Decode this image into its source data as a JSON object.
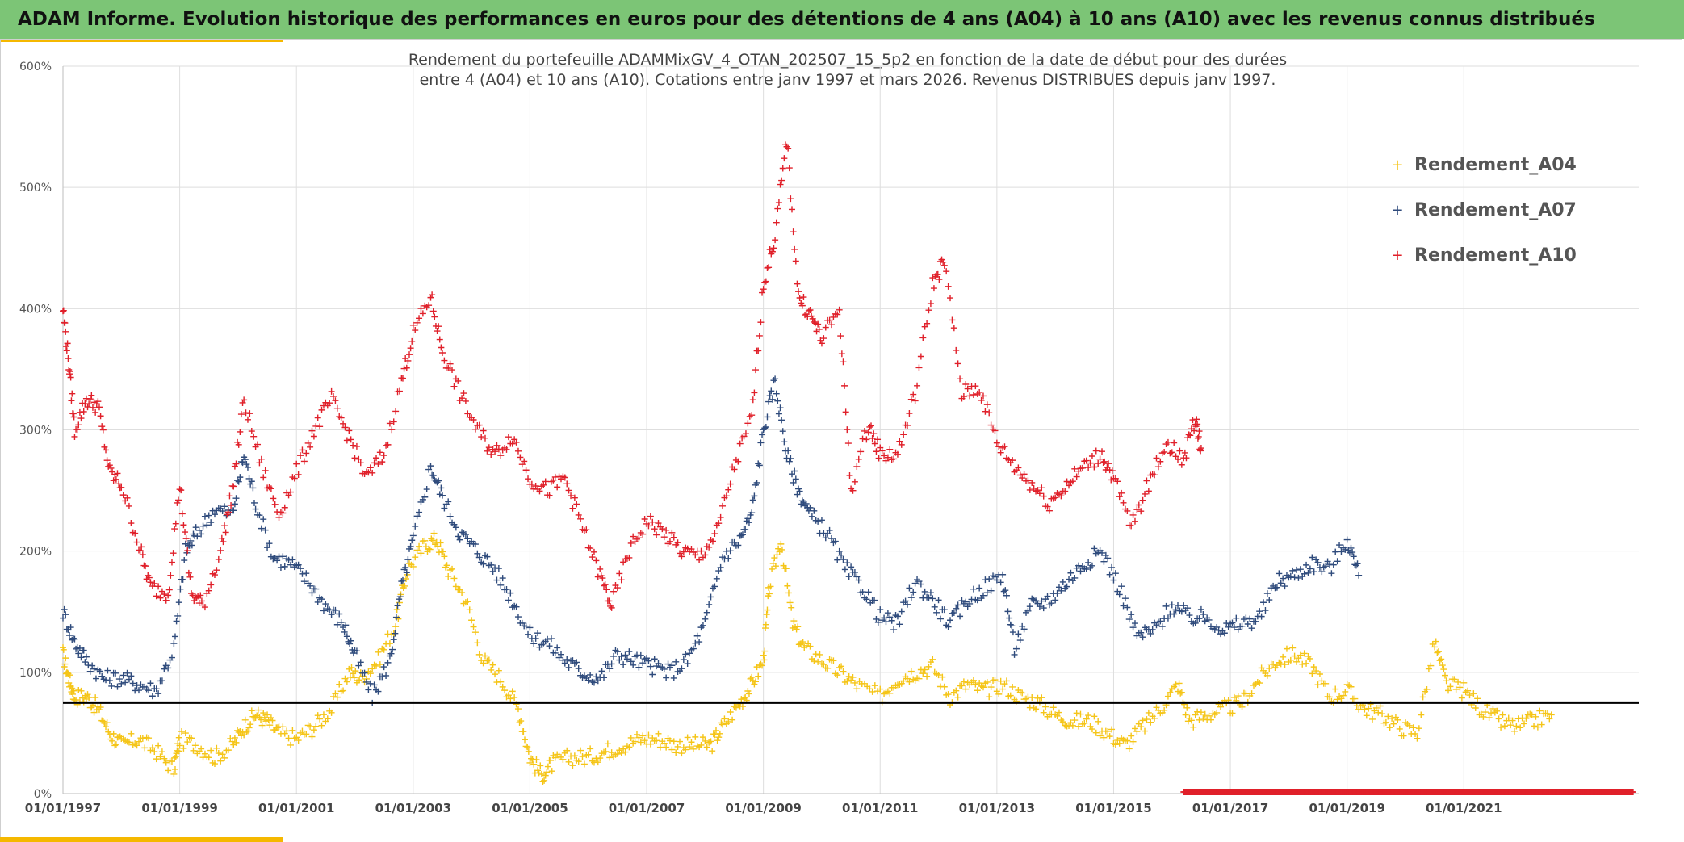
{
  "header": {
    "title": "ADAM Informe. Evolution historique des performances en euros pour des détentions de 4 ans (A04) à 10 ans (A10) avec les revenus connus distribués"
  },
  "colors": {
    "banner": "#7cc576",
    "accent": "#f5b800",
    "a04": "#f5c518",
    "a07": "#2f4b7c",
    "a10": "#e0202a",
    "reference_line": "#000000"
  },
  "chart_data": {
    "type": "scatter",
    "title_line1": "Rendement du portefeuille ADAMMixGV_4_OTAN_202507_15_5p2  en fonction de la date de début pour des durées",
    "title_line2": "entre 4 (A04) et 10 ans (A10). Cotations entre janv 1997 et mars 2026. Revenus DISTRIBUES depuis janv 1997.",
    "x_axis": {
      "min": "1997-01-01",
      "max": "2023-12-31",
      "tick_labels": [
        "01/01/1997",
        "01/01/1999",
        "01/01/2001",
        "01/01/2003",
        "01/01/2005",
        "01/01/2007",
        "01/01/2009",
        "01/01/2011",
        "01/01/2013",
        "01/01/2015",
        "01/01/2017",
        "01/01/2019",
        "01/01/2021"
      ],
      "tick_years": [
        1997,
        1999,
        2001,
        2003,
        2005,
        2007,
        2009,
        2011,
        2013,
        2015,
        2017,
        2019,
        2021
      ]
    },
    "y_axis": {
      "min": 0,
      "max": 600,
      "step": 100,
      "tick_labels": [
        "0%",
        "100%",
        "200%",
        "300%",
        "400%",
        "500%",
        "600%"
      ]
    },
    "grid": true,
    "legend_position": "top-right",
    "reference_line_value": 75,
    "series": [
      {
        "name": "Rendement_A04",
        "marker": "+",
        "points": [
          [
            1997.0,
            115
          ],
          [
            1997.1,
            95
          ],
          [
            1997.2,
            80
          ],
          [
            1997.4,
            80
          ],
          [
            1997.6,
            70
          ],
          [
            1997.8,
            50
          ],
          [
            1998.0,
            40
          ],
          [
            1998.3,
            45
          ],
          [
            1998.6,
            35
          ],
          [
            1998.9,
            20
          ],
          [
            1999.0,
            45
          ],
          [
            1999.3,
            40
          ],
          [
            1999.6,
            30
          ],
          [
            1999.9,
            40
          ],
          [
            2000.1,
            55
          ],
          [
            2000.3,
            65
          ],
          [
            2000.5,
            60
          ],
          [
            2000.7,
            50
          ],
          [
            2001.0,
            45
          ],
          [
            2001.3,
            55
          ],
          [
            2001.6,
            70
          ],
          [
            2001.9,
            100
          ],
          [
            2002.1,
            95
          ],
          [
            2002.4,
            110
          ],
          [
            2002.7,
            140
          ],
          [
            2002.9,
            185
          ],
          [
            2003.2,
            205
          ],
          [
            2003.4,
            210
          ],
          [
            2003.6,
            185
          ],
          [
            2003.9,
            160
          ],
          [
            2004.2,
            110
          ],
          [
            2004.5,
            95
          ],
          [
            2004.8,
            70
          ],
          [
            2005.0,
            30
          ],
          [
            2005.2,
            15
          ],
          [
            2005.4,
            25
          ],
          [
            2005.7,
            30
          ],
          [
            2006.0,
            30
          ],
          [
            2006.3,
            35
          ],
          [
            2006.6,
            40
          ],
          [
            2006.9,
            45
          ],
          [
            2007.2,
            45
          ],
          [
            2007.5,
            40
          ],
          [
            2007.8,
            40
          ],
          [
            2008.1,
            40
          ],
          [
            2008.3,
            55
          ],
          [
            2008.6,
            75
          ],
          [
            2008.8,
            90
          ],
          [
            2009.0,
            110
          ],
          [
            2009.1,
            170
          ],
          [
            2009.3,
            210
          ],
          [
            2009.5,
            140
          ],
          [
            2009.7,
            120
          ],
          [
            2010.0,
            110
          ],
          [
            2010.3,
            100
          ],
          [
            2010.6,
            90
          ],
          [
            2011.0,
            80
          ],
          [
            2011.3,
            95
          ],
          [
            2011.6,
            100
          ],
          [
            2011.9,
            105
          ],
          [
            2012.2,
            80
          ],
          [
            2012.5,
            90
          ],
          [
            2012.8,
            85
          ],
          [
            2013.1,
            90
          ],
          [
            2013.4,
            80
          ],
          [
            2013.7,
            75
          ],
          [
            2014.0,
            65
          ],
          [
            2014.3,
            60
          ],
          [
            2014.6,
            60
          ],
          [
            2014.9,
            50
          ],
          [
            2015.2,
            40
          ],
          [
            2015.5,
            55
          ],
          [
            2015.8,
            70
          ],
          [
            2016.1,
            90
          ],
          [
            2016.3,
            60
          ],
          [
            2016.6,
            65
          ],
          [
            2016.9,
            70
          ],
          [
            2017.2,
            75
          ],
          [
            2017.5,
            95
          ],
          [
            2017.8,
            110
          ],
          [
            2018.1,
            115
          ],
          [
            2018.4,
            105
          ],
          [
            2018.7,
            80
          ],
          [
            2019.0,
            85
          ],
          [
            2019.3,
            70
          ],
          [
            2019.6,
            65
          ],
          [
            2019.9,
            55
          ],
          [
            2020.2,
            50
          ],
          [
            2020.5,
            125
          ],
          [
            2020.7,
            90
          ],
          [
            2021.0,
            85
          ],
          [
            2021.3,
            70
          ],
          [
            2021.6,
            60
          ],
          [
            2021.9,
            55
          ],
          [
            2022.2,
            60
          ],
          [
            2022.5,
            65
          ]
        ]
      },
      {
        "name": "Rendement_A07",
        "marker": "+",
        "points": [
          [
            1997.0,
            150
          ],
          [
            1997.2,
            125
          ],
          [
            1997.4,
            110
          ],
          [
            1997.7,
            95
          ],
          [
            1998.0,
            95
          ],
          [
            1998.3,
            90
          ],
          [
            1998.6,
            85
          ],
          [
            1998.9,
            120
          ],
          [
            1999.1,
            200
          ],
          [
            1999.3,
            215
          ],
          [
            1999.6,
            235
          ],
          [
            1999.9,
            230
          ],
          [
            2000.1,
            280
          ],
          [
            2000.3,
            240
          ],
          [
            2000.6,
            195
          ],
          [
            2000.9,
            190
          ],
          [
            2001.2,
            175
          ],
          [
            2001.5,
            155
          ],
          [
            2001.8,
            140
          ],
          [
            2002.0,
            115
          ],
          [
            2002.3,
            80
          ],
          [
            2002.6,
            110
          ],
          [
            2002.8,
            170
          ],
          [
            2003.0,
            210
          ],
          [
            2003.3,
            270
          ],
          [
            2003.5,
            245
          ],
          [
            2003.8,
            215
          ],
          [
            2004.1,
            200
          ],
          [
            2004.4,
            185
          ],
          [
            2004.7,
            160
          ],
          [
            2005.0,
            130
          ],
          [
            2005.3,
            125
          ],
          [
            2005.6,
            110
          ],
          [
            2005.9,
            100
          ],
          [
            2006.2,
            95
          ],
          [
            2006.5,
            115
          ],
          [
            2006.8,
            110
          ],
          [
            2007.1,
            105
          ],
          [
            2007.4,
            100
          ],
          [
            2007.7,
            110
          ],
          [
            2008.0,
            140
          ],
          [
            2008.3,
            195
          ],
          [
            2008.6,
            210
          ],
          [
            2008.8,
            230
          ],
          [
            2009.0,
            300
          ],
          [
            2009.2,
            340
          ],
          [
            2009.4,
            280
          ],
          [
            2009.6,
            250
          ],
          [
            2009.8,
            230
          ],
          [
            2010.1,
            215
          ],
          [
            2010.4,
            185
          ],
          [
            2010.7,
            170
          ],
          [
            2011.0,
            145
          ],
          [
            2011.3,
            140
          ],
          [
            2011.6,
            175
          ],
          [
            2011.9,
            160
          ],
          [
            2012.2,
            140
          ],
          [
            2012.5,
            160
          ],
          [
            2012.8,
            170
          ],
          [
            2013.1,
            180
          ],
          [
            2013.3,
            120
          ],
          [
            2013.6,
            155
          ],
          [
            2013.9,
            160
          ],
          [
            2014.2,
            175
          ],
          [
            2014.5,
            190
          ],
          [
            2014.8,
            200
          ],
          [
            2015.1,
            170
          ],
          [
            2015.4,
            130
          ],
          [
            2015.7,
            135
          ],
          [
            2016.0,
            155
          ],
          [
            2016.3,
            145
          ],
          [
            2016.6,
            145
          ],
          [
            2016.9,
            135
          ],
          [
            2017.2,
            140
          ],
          [
            2017.5,
            145
          ],
          [
            2017.8,
            175
          ],
          [
            2018.1,
            180
          ],
          [
            2018.4,
            190
          ],
          [
            2018.7,
            185
          ],
          [
            2019.0,
            210
          ],
          [
            2019.2,
            180
          ]
        ]
      },
      {
        "name": "Rendement_A10",
        "marker": "+",
        "points": [
          [
            1997.0,
            400
          ],
          [
            1997.1,
            355
          ],
          [
            1997.2,
            300
          ],
          [
            1997.4,
            325
          ],
          [
            1997.6,
            320
          ],
          [
            1997.8,
            265
          ],
          [
            1998.0,
            255
          ],
          [
            1998.3,
            205
          ],
          [
            1998.5,
            170
          ],
          [
            1998.8,
            165
          ],
          [
            1999.0,
            255
          ],
          [
            1999.2,
            165
          ],
          [
            1999.4,
            155
          ],
          [
            1999.7,
            200
          ],
          [
            1999.9,
            250
          ],
          [
            2000.1,
            325
          ],
          [
            2000.4,
            270
          ],
          [
            2000.7,
            230
          ],
          [
            2001.0,
            265
          ],
          [
            2001.3,
            300
          ],
          [
            2001.6,
            325
          ],
          [
            2001.9,
            295
          ],
          [
            2002.2,
            260
          ],
          [
            2002.5,
            280
          ],
          [
            2002.8,
            340
          ],
          [
            2003.0,
            380
          ],
          [
            2003.3,
            410
          ],
          [
            2003.5,
            365
          ],
          [
            2003.8,
            330
          ],
          [
            2004.1,
            300
          ],
          [
            2004.4,
            280
          ],
          [
            2004.7,
            295
          ],
          [
            2005.0,
            260
          ],
          [
            2005.3,
            250
          ],
          [
            2005.6,
            260
          ],
          [
            2005.9,
            220
          ],
          [
            2006.2,
            180
          ],
          [
            2006.4,
            155
          ],
          [
            2006.7,
            200
          ],
          [
            2007.0,
            225
          ],
          [
            2007.3,
            215
          ],
          [
            2007.6,
            200
          ],
          [
            2007.9,
            195
          ],
          [
            2008.2,
            215
          ],
          [
            2008.5,
            270
          ],
          [
            2008.8,
            310
          ],
          [
            2009.0,
            420
          ],
          [
            2009.2,
            460
          ],
          [
            2009.4,
            540
          ],
          [
            2009.6,
            410
          ],
          [
            2009.8,
            395
          ],
          [
            2010.0,
            375
          ],
          [
            2010.3,
            400
          ],
          [
            2010.5,
            250
          ],
          [
            2010.8,
            305
          ],
          [
            2011.0,
            280
          ],
          [
            2011.3,
            280
          ],
          [
            2011.6,
            330
          ],
          [
            2011.9,
            420
          ],
          [
            2012.1,
            440
          ],
          [
            2012.4,
            330
          ],
          [
            2012.7,
            335
          ],
          [
            2013.0,
            290
          ],
          [
            2013.3,
            270
          ],
          [
            2013.6,
            255
          ],
          [
            2013.9,
            240
          ],
          [
            2014.2,
            255
          ],
          [
            2014.5,
            270
          ],
          [
            2014.8,
            280
          ],
          [
            2015.0,
            260
          ],
          [
            2015.3,
            220
          ],
          [
            2015.6,
            255
          ],
          [
            2015.9,
            290
          ],
          [
            2016.2,
            275
          ],
          [
            2016.4,
            310
          ],
          [
            2016.5,
            285
          ]
        ]
      },
      {
        "name": "",
        "marker": "+",
        "color_key": "a10",
        "points": [
          [
            2016.2,
            0
          ],
          [
            2016.6,
            0
          ],
          [
            2017.0,
            0
          ],
          [
            2017.4,
            0
          ],
          [
            2017.8,
            0
          ],
          [
            2018.2,
            0
          ],
          [
            2018.6,
            0
          ],
          [
            2019.0,
            0
          ],
          [
            2019.4,
            0
          ],
          [
            2019.8,
            0
          ],
          [
            2020.2,
            0
          ],
          [
            2020.6,
            0
          ],
          [
            2021.0,
            0
          ],
          [
            2021.4,
            0
          ],
          [
            2021.8,
            0
          ],
          [
            2022.2,
            0
          ],
          [
            2022.6,
            0
          ],
          [
            2023.0,
            0
          ],
          [
            2023.4,
            0
          ],
          [
            2023.9,
            0
          ]
        ]
      }
    ]
  }
}
